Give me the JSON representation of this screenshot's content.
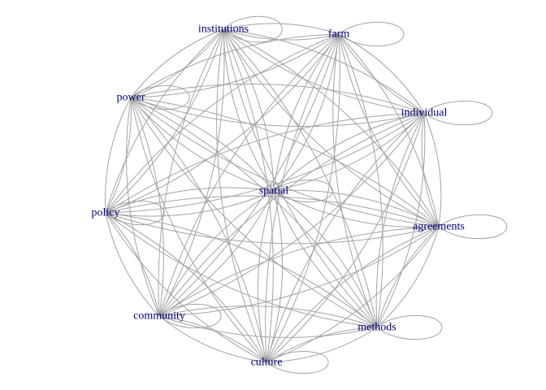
{
  "colors": {
    "edge": "#a3a3a3",
    "label": "#00007f",
    "background": "#ffffff"
  },
  "nodes": [
    {
      "id": "institutions",
      "label": "institutions"
    },
    {
      "id": "farm",
      "label": "farm"
    },
    {
      "id": "power",
      "label": "power"
    },
    {
      "id": "individual",
      "label": "individual"
    },
    {
      "id": "spatial",
      "label": "spatial"
    },
    {
      "id": "policy",
      "label": "policy"
    },
    {
      "id": "agreements",
      "label": "agreements"
    },
    {
      "id": "community",
      "label": "community"
    },
    {
      "id": "methods",
      "label": "methods"
    },
    {
      "id": "culture",
      "label": "culture"
    }
  ],
  "graph": {
    "fully_connected": true,
    "multi_edges_per_pair": 2,
    "self_loops": [
      "institutions",
      "farm",
      "power",
      "individual",
      "spatial",
      "policy",
      "agreements",
      "community",
      "methods",
      "culture"
    ]
  }
}
